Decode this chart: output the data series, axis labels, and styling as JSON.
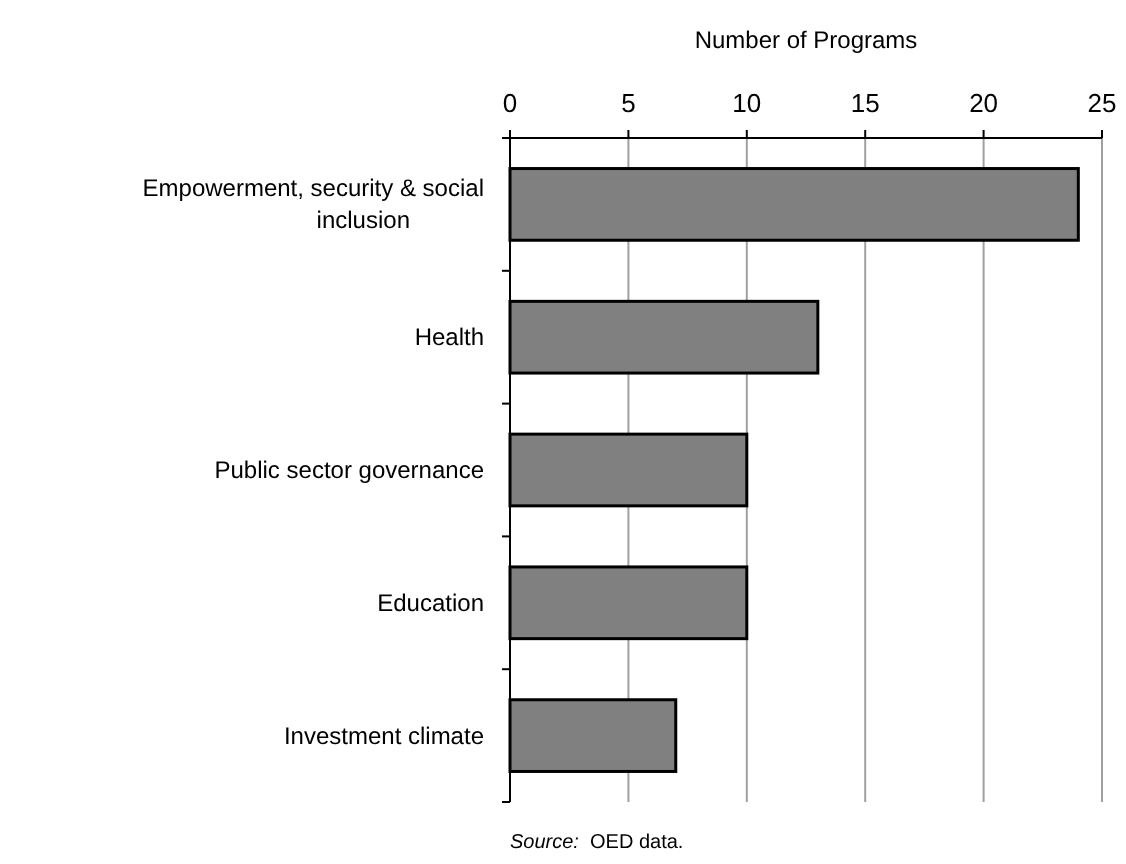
{
  "chart_data": {
    "type": "bar",
    "orientation": "horizontal",
    "xlabel": "Number of Programs",
    "categories": [
      "Empowerment, security & social inclusion",
      "Health",
      "Public sector governance",
      "Education",
      "Investment climate"
    ],
    "values": [
      24,
      13,
      10,
      10,
      7
    ],
    "color": "#808080",
    "xlim": [
      0,
      25
    ],
    "xticks": [
      0,
      5,
      10,
      15,
      20,
      25
    ],
    "grid": "x",
    "annotations": [
      "Source:  OED data."
    ]
  }
}
